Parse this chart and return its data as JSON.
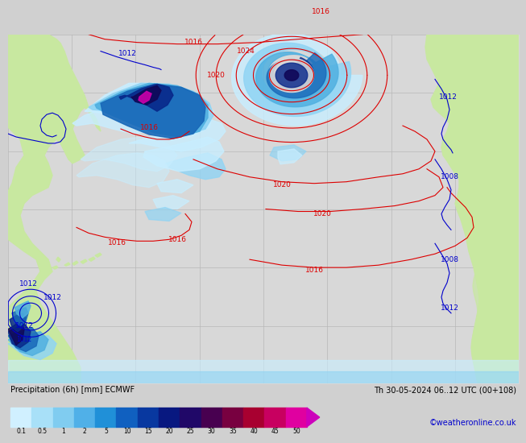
{
  "title_left": "Precipitation (6h) [mm] ECMWF",
  "title_right": "Th 30-05-2024 06..12 UTC (00+108)",
  "levels": [
    0.1,
    0.5,
    1,
    2,
    5,
    10,
    15,
    20,
    25,
    30,
    35,
    40,
    45,
    50
  ],
  "prec_colors": [
    "#d0f0ff",
    "#a8e0f8",
    "#80ccf0",
    "#50b0e8",
    "#2090d8",
    "#1060c0",
    "#0838a0",
    "#081880",
    "#200868",
    "#480050",
    "#780040",
    "#a80030",
    "#c80060",
    "#e000a0"
  ],
  "land_color": "#c8e8a0",
  "ocean_color": "#d8d8d8",
  "grid_color": "#b8b8b8",
  "contour_red": "#dd0000",
  "contour_blue": "#0000cc",
  "credit": "©weatheronline.co.uk",
  "bottom_bg": "#d0d0d0",
  "tick_color": "#404040"
}
